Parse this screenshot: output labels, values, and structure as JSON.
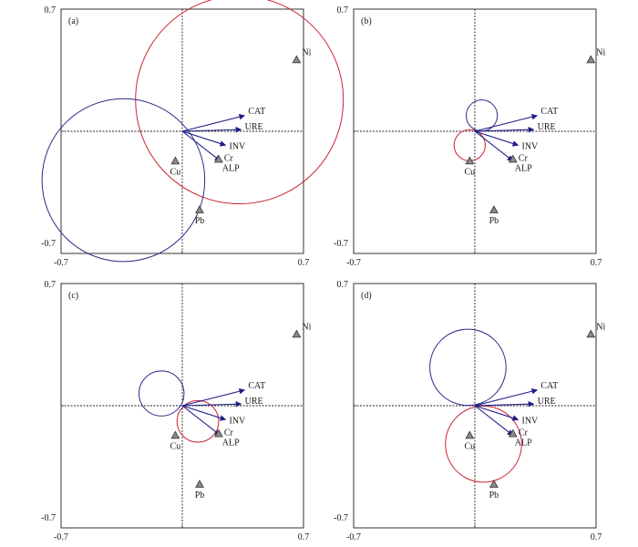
{
  "figure": {
    "background": "#ffffff"
  },
  "chart_data": [
    {
      "type": "scatter",
      "panel_label": "(a)",
      "xlim": [
        -0.7,
        0.7
      ],
      "ylim": [
        -0.7,
        0.7
      ],
      "x_tick_labels": [
        "-0.7",
        "0.7"
      ],
      "y_tick_labels": [
        "0.7",
        "-0.7"
      ],
      "arrows": [
        {
          "label": "CAT",
          "x": 0.36,
          "y": 0.09
        },
        {
          "label": "URE",
          "x": 0.34,
          "y": 0.01
        },
        {
          "label": "INV",
          "x": 0.25,
          "y": -0.08
        },
        {
          "label": "ALP",
          "x": 0.22,
          "y": -0.17
        }
      ],
      "points": [
        {
          "label": "Ni",
          "x": 0.66,
          "y": 0.41
        },
        {
          "label": "Cu",
          "x": -0.04,
          "y": -0.17
        },
        {
          "label": "Cr",
          "x": 0.21,
          "y": -0.16
        },
        {
          "label": "Pb",
          "x": 0.1,
          "y": -0.45
        }
      ],
      "circles": [
        {
          "color": "#cc2233",
          "cx": 0.33,
          "cy": 0.18,
          "r": 0.6
        },
        {
          "color": "#2a2a8a",
          "cx": -0.34,
          "cy": -0.28,
          "r": 0.47
        }
      ]
    },
    {
      "type": "scatter",
      "panel_label": "(b)",
      "xlim": [
        -0.7,
        0.7
      ],
      "ylim": [
        -0.7,
        0.7
      ],
      "x_tick_labels": [
        "-0.7",
        "0.7"
      ],
      "y_tick_labels": [
        "0.7",
        "-0.7"
      ],
      "arrows": [
        {
          "label": "CAT",
          "x": 0.36,
          "y": 0.09
        },
        {
          "label": "URE",
          "x": 0.34,
          "y": 0.01
        },
        {
          "label": "INV",
          "x": 0.25,
          "y": -0.08
        },
        {
          "label": "ALP",
          "x": 0.22,
          "y": -0.17
        }
      ],
      "points": [
        {
          "label": "Ni",
          "x": 0.67,
          "y": 0.41
        },
        {
          "label": "Cu",
          "x": -0.03,
          "y": -0.17
        },
        {
          "label": "Cr",
          "x": 0.22,
          "y": -0.16
        },
        {
          "label": "Pb",
          "x": 0.11,
          "y": -0.45
        }
      ],
      "circles": [
        {
          "color": "#2a2a8a",
          "cx": 0.04,
          "cy": 0.09,
          "r": 0.09
        },
        {
          "color": "#cc2233",
          "cx": -0.03,
          "cy": -0.08,
          "r": 0.09
        }
      ]
    },
    {
      "type": "scatter",
      "panel_label": "(c)",
      "xlim": [
        -0.7,
        0.7
      ],
      "ylim": [
        -0.7,
        0.7
      ],
      "x_tick_labels": [
        "-0.7",
        "0.7"
      ],
      "y_tick_labels": [
        "0.7",
        "-0.7"
      ],
      "arrows": [
        {
          "label": "CAT",
          "x": 0.36,
          "y": 0.09
        },
        {
          "label": "URE",
          "x": 0.34,
          "y": 0.01
        },
        {
          "label": "INV",
          "x": 0.25,
          "y": -0.08
        },
        {
          "label": "ALP",
          "x": 0.22,
          "y": -0.17
        }
      ],
      "points": [
        {
          "label": "Ni",
          "x": 0.66,
          "y": 0.41
        },
        {
          "label": "Cu",
          "x": -0.04,
          "y": -0.17
        },
        {
          "label": "Cr",
          "x": 0.21,
          "y": -0.16
        },
        {
          "label": "Pb",
          "x": 0.1,
          "y": -0.45
        }
      ],
      "circles": [
        {
          "color": "#2a2a8a",
          "cx": -0.12,
          "cy": 0.07,
          "r": 0.13
        },
        {
          "color": "#cc2233",
          "cx": 0.09,
          "cy": -0.09,
          "r": 0.12
        }
      ]
    },
    {
      "type": "scatter",
      "panel_label": "(d)",
      "xlim": [
        -0.7,
        0.7
      ],
      "ylim": [
        -0.7,
        0.7
      ],
      "x_tick_labels": [
        "-0.7",
        "0.7"
      ],
      "y_tick_labels": [
        "0.7",
        "-0.7"
      ],
      "arrows": [
        {
          "label": "CAT",
          "x": 0.36,
          "y": 0.09
        },
        {
          "label": "URE",
          "x": 0.34,
          "y": 0.01
        },
        {
          "label": "INV",
          "x": 0.25,
          "y": -0.08
        },
        {
          "label": "ALP",
          "x": 0.22,
          "y": -0.17
        }
      ],
      "points": [
        {
          "label": "Ni",
          "x": 0.67,
          "y": 0.41
        },
        {
          "label": "Cu",
          "x": -0.03,
          "y": -0.17
        },
        {
          "label": "Cr",
          "x": 0.22,
          "y": -0.16
        },
        {
          "label": "Pb",
          "x": 0.11,
          "y": -0.45
        }
      ],
      "circles": [
        {
          "color": "#2a2a8a",
          "cx": -0.04,
          "cy": 0.22,
          "r": 0.22
        },
        {
          "color": "#cc2233",
          "cx": 0.05,
          "cy": -0.22,
          "r": 0.22
        }
      ]
    }
  ],
  "colors": {
    "arrow": "#1e1e86",
    "marker_fill": "#8a8a8a",
    "marker_stroke": "#333333",
    "axis": "#333333"
  }
}
